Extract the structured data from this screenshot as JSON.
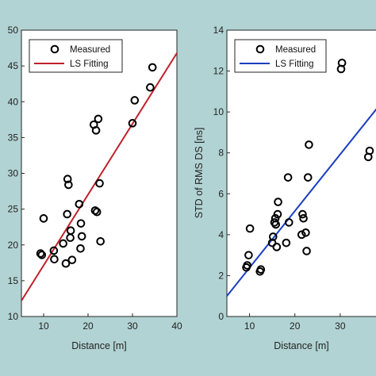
{
  "chart_data": [
    {
      "type": "scatter",
      "xlabel": "Distance [m]",
      "ylabel": "",
      "xlim": [
        5,
        40
      ],
      "ylim": [
        10,
        50
      ],
      "xticks": [
        10,
        20,
        30,
        40
      ],
      "yticks": [
        10,
        15,
        20,
        25,
        30,
        35,
        40,
        45,
        50
      ],
      "grid": false,
      "legend": "top-left",
      "series": [
        {
          "name": "Measured",
          "kind": "markers",
          "color": "#000000",
          "x": [
            9.3,
            9.6,
            10.0,
            12.4,
            12.3,
            14.4,
            15.0,
            15.3,
            15.4,
            15.6,
            16.0,
            16.1,
            16.4,
            18.0,
            18.3,
            18.4,
            18.6,
            21.3,
            21.6,
            21.8,
            22.0,
            22.3,
            22.6,
            22.8,
            30.0,
            30.5,
            34.0,
            34.5
          ],
          "y": [
            18.8,
            18.6,
            23.7,
            18.0,
            19.2,
            20.2,
            17.4,
            24.3,
            29.2,
            28.4,
            21.0,
            22.0,
            17.9,
            25.7,
            19.5,
            23.0,
            21.2,
            36.8,
            24.8,
            36.0,
            24.6,
            37.6,
            28.6,
            20.5,
            37.0,
            40.2,
            42.0,
            44.8
          ]
        },
        {
          "name": "LS Fitting",
          "kind": "line",
          "color": "#c0202a",
          "x": [
            5,
            40
          ],
          "y": [
            12.2,
            46.8
          ]
        }
      ]
    },
    {
      "type": "scatter",
      "xlabel": "Distance [m]",
      "ylabel": "STD of RMS DS [ns]",
      "xlim": [
        5,
        40
      ],
      "ylim": [
        0,
        14
      ],
      "xticks": [
        10,
        20,
        30
      ],
      "yticks": [
        0,
        2,
        4,
        6,
        8,
        10,
        12,
        14
      ],
      "grid": false,
      "legend": "top-right",
      "series": [
        {
          "name": "Measured",
          "kind": "markers",
          "color": "#000000",
          "x": [
            9.3,
            9.5,
            9.8,
            10.1,
            12.3,
            12.5,
            15.0,
            15.2,
            15.5,
            15.7,
            15.8,
            16.0,
            16.2,
            16.3,
            18.1,
            18.5,
            18.7,
            21.5,
            21.7,
            21.9,
            22.4,
            22.6,
            22.9,
            23.1,
            30.2,
            30.4,
            36.2,
            36.5
          ],
          "y": [
            2.4,
            2.5,
            3.0,
            4.3,
            2.2,
            2.3,
            3.6,
            3.9,
            4.6,
            4.8,
            4.5,
            3.4,
            5.0,
            5.6,
            3.6,
            6.8,
            4.6,
            4.0,
            5.0,
            4.8,
            4.1,
            3.2,
            6.8,
            8.4,
            12.1,
            12.4,
            7.8,
            8.1
          ]
        },
        {
          "name": "LS Fitting",
          "kind": "line",
          "color": "#1a3fc0",
          "x": [
            5,
            40
          ],
          "y": [
            1.0,
            10.7
          ]
        }
      ]
    }
  ]
}
